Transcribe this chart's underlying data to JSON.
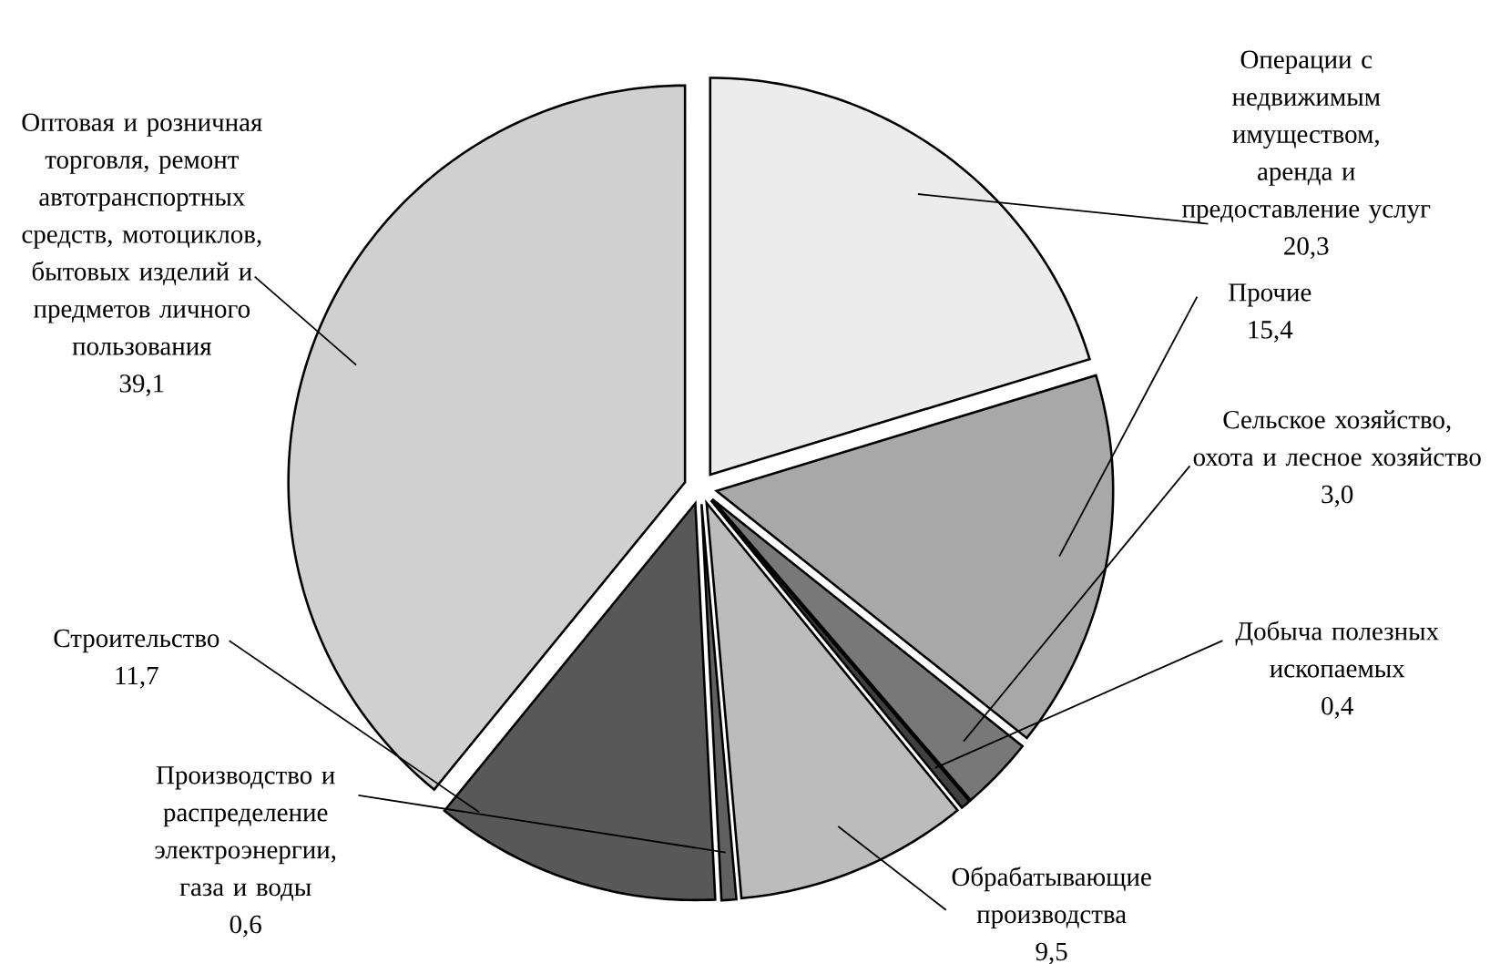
{
  "chart_data": {
    "type": "pie",
    "categories": [
      "Операции с недвижимым имуществом, аренда и предоставление услуг",
      "Прочие",
      "Сельское хозяйство, охота и лесное хозяйство",
      "Добыча полезных ископаемых",
      "Обрабатывающие производства",
      "Производство и распределение электроэнергии, газа и воды",
      "Строительство",
      "Оптовая и розничная торговля, ремонт автотранспортных средств, мотоциклов, бытовых изделий и предметов личного пользования"
    ],
    "values": [
      20.3,
      15.4,
      3.0,
      0.4,
      9.5,
      0.6,
      11.7,
      39.1
    ],
    "value_labels": [
      "20,3",
      "15,4",
      "3,0",
      "0,4",
      "9,5",
      "0,6",
      "11,7",
      "39,1"
    ],
    "colors": [
      "#ececec",
      "#a8a8a8",
      "#787878",
      "#404040",
      "#bcbcbc",
      "#606060",
      "#585858",
      "#d0d0d0"
    ]
  }
}
